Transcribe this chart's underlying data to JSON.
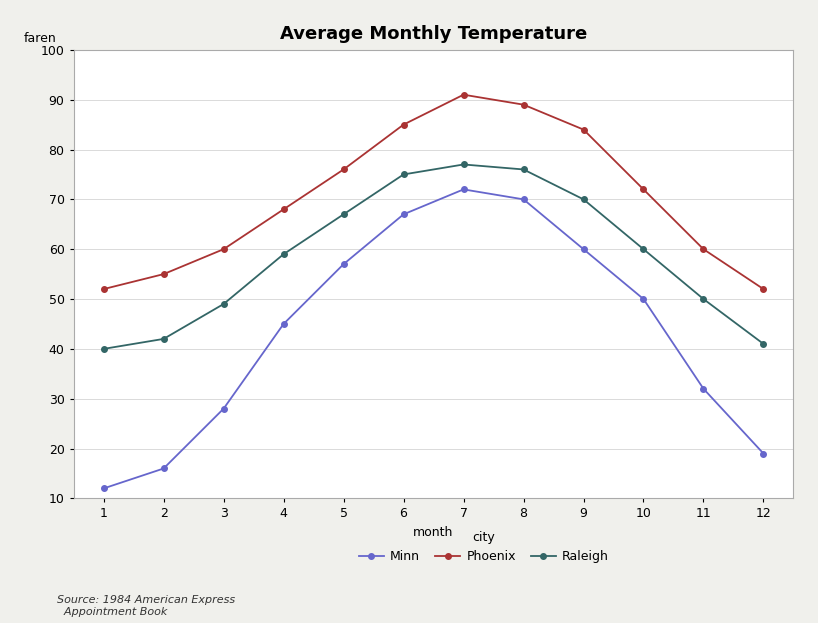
{
  "title": "Average Monthly Temperature",
  "xlabel": "month",
  "ylabel": "faren",
  "xlim": [
    0.5,
    12.5
  ],
  "ylim": [
    10,
    100
  ],
  "xticks": [
    1,
    2,
    3,
    4,
    5,
    6,
    7,
    8,
    9,
    10,
    11,
    12
  ],
  "yticks": [
    10,
    20,
    30,
    40,
    50,
    60,
    70,
    80,
    90,
    100
  ],
  "months": [
    1,
    2,
    3,
    4,
    5,
    6,
    7,
    8,
    9,
    10,
    11,
    12
  ],
  "minn": [
    12,
    16,
    28,
    45,
    57,
    67,
    72,
    70,
    60,
    50,
    32,
    19
  ],
  "phoenix": [
    52,
    55,
    60,
    68,
    76,
    85,
    91,
    89,
    84,
    72,
    60,
    52
  ],
  "raleigh": [
    40,
    42,
    49,
    59,
    67,
    75,
    77,
    76,
    70,
    60,
    50,
    41
  ],
  "minn_color": "#6666cc",
  "phoenix_color": "#aa3333",
  "raleigh_color": "#336666",
  "source_text": "Source: 1984 American Express\n  Appointment Book",
  "legend_label_city": "city",
  "legend_label_minn": "Minn",
  "legend_label_phoenix": "Phoenix",
  "legend_label_raleigh": "Raleigh",
  "background_color": "#f0f0ec",
  "plot_bg_color": "#ffffff",
  "border_color": "#aaaaaa"
}
